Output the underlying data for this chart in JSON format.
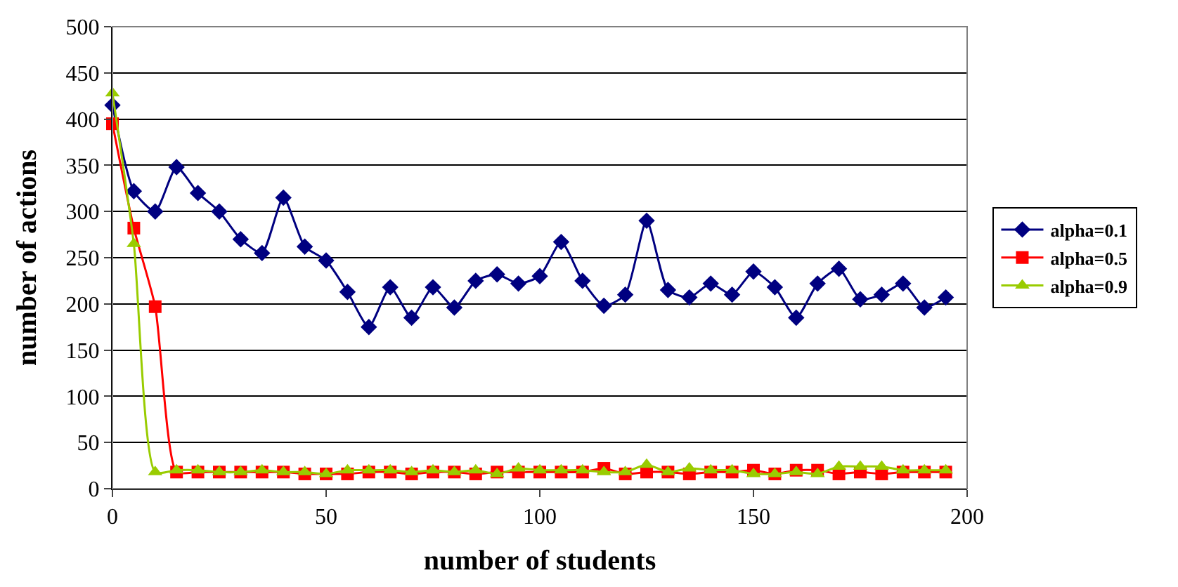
{
  "chart_data": {
    "type": "line",
    "xlabel": "number of students",
    "ylabel": "number of actions",
    "x": [
      0,
      5,
      10,
      15,
      20,
      25,
      30,
      35,
      40,
      45,
      50,
      55,
      60,
      65,
      70,
      75,
      80,
      85,
      90,
      95,
      100,
      105,
      110,
      115,
      120,
      125,
      130,
      135,
      140,
      145,
      150,
      155,
      160,
      165,
      170,
      175,
      180,
      185,
      190,
      195
    ],
    "series": [
      {
        "name": "alpha=0.1",
        "color": "#000080",
        "marker": "diamond",
        "values": [
          415,
          322,
          300,
          348,
          320,
          300,
          270,
          255,
          315,
          262,
          247,
          213,
          175,
          218,
          185,
          218,
          196,
          225,
          232,
          222,
          230,
          267,
          225,
          198,
          210,
          290,
          215,
          207,
          222,
          210,
          235,
          218,
          185,
          222,
          238,
          205,
          210,
          222,
          196,
          207
        ]
      },
      {
        "name": "alpha=0.5",
        "color": "#ff0000",
        "marker": "square",
        "values": [
          395,
          282,
          197,
          18,
          18,
          18,
          18,
          18,
          18,
          16,
          16,
          16,
          18,
          18,
          16,
          18,
          18,
          16,
          18,
          18,
          18,
          18,
          18,
          22,
          16,
          18,
          18,
          16,
          18,
          18,
          20,
          16,
          20,
          20,
          16,
          18,
          16,
          18,
          18,
          18
        ]
      },
      {
        "name": "alpha=0.9",
        "color": "#99cc00",
        "marker": "triangle",
        "values": [
          428,
          265,
          18,
          20,
          20,
          18,
          18,
          20,
          18,
          18,
          16,
          20,
          20,
          20,
          18,
          20,
          18,
          20,
          16,
          22,
          20,
          20,
          20,
          18,
          18,
          26,
          18,
          22,
          20,
          20,
          16,
          16,
          18,
          16,
          24,
          24,
          24,
          20,
          20,
          20
        ]
      }
    ],
    "xlim": [
      0,
      200
    ],
    "xticks": [
      0,
      50,
      100,
      150,
      200
    ],
    "ylim": [
      0,
      500
    ],
    "yticks": [
      0,
      50,
      100,
      150,
      200,
      250,
      300,
      350,
      400,
      450,
      500
    ],
    "grid": "y",
    "legend": "right"
  }
}
